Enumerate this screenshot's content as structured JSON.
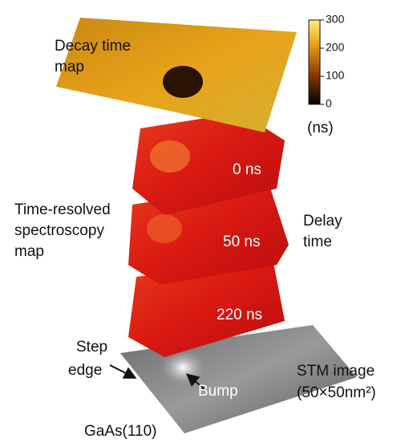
{
  "labels": {
    "decay_title": [
      "Decay time",
      "map"
    ],
    "colorbar_unit": "(ns)",
    "delays": [
      "0 ns",
      "50 ns",
      "220 ns"
    ],
    "trs_title": [
      "Time-resolved",
      "spectroscopy",
      "map"
    ],
    "delay_title": [
      "Delay",
      "time"
    ],
    "step": [
      "Step",
      "edge"
    ],
    "bump": "Bump",
    "stm": [
      "STM image",
      "(50×50nm²)"
    ],
    "sample": "GaAs(110)"
  },
  "colorbar": {
    "range": [
      0,
      300
    ],
    "ticks": [
      0,
      100,
      200,
      300
    ]
  }
}
